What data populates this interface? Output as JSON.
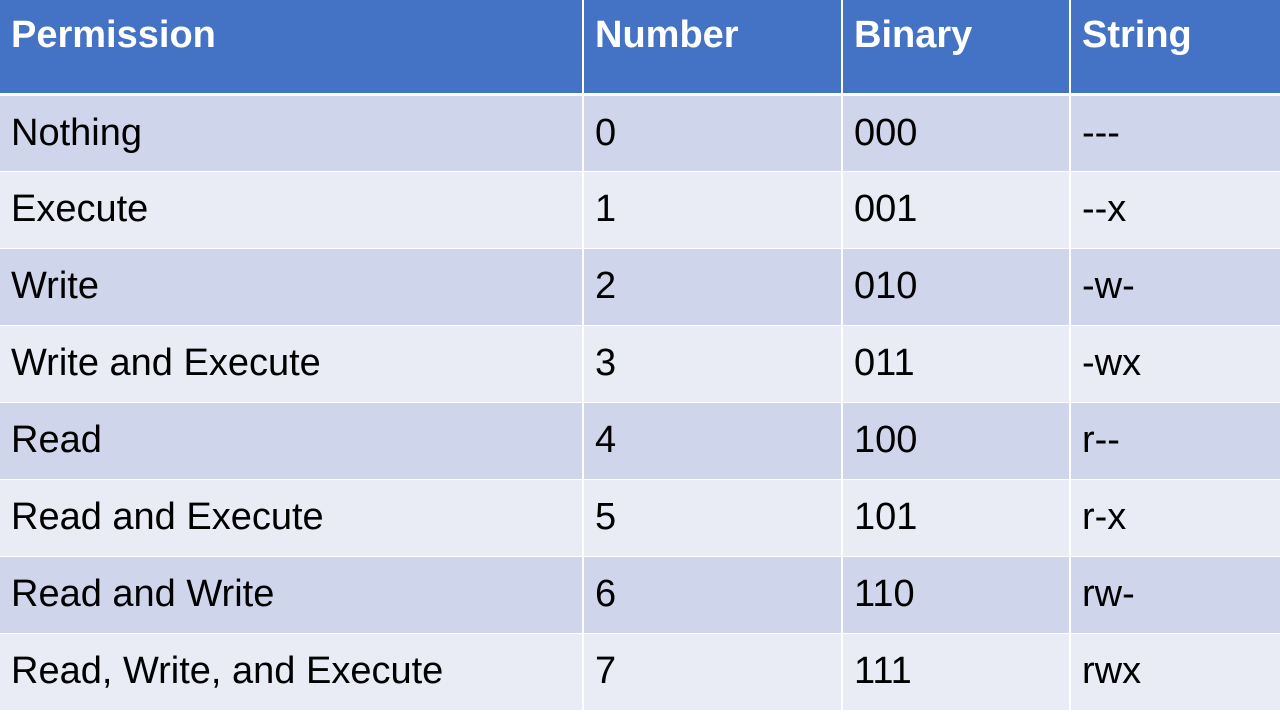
{
  "table": {
    "headers": [
      "Permission",
      "Number",
      "Binary",
      "String"
    ],
    "rows": [
      [
        "Nothing",
        "0",
        "000",
        "---"
      ],
      [
        "Execute",
        "1",
        "001",
        "--x"
      ],
      [
        "Write",
        "2",
        "010",
        "-w-"
      ],
      [
        "Write and Execute",
        "3",
        "011",
        "-wx"
      ],
      [
        "Read",
        "4",
        "100",
        "r--"
      ],
      [
        "Read and Execute",
        "5",
        "101",
        "r-x"
      ],
      [
        "Read and Write",
        "6",
        "110",
        "rw-"
      ],
      [
        "Read, Write, and Execute",
        "7",
        "111",
        "rwx"
      ]
    ]
  },
  "colors": {
    "header_bg": "#4472c4",
    "header_text": "#ffffff",
    "row_band_dark": "#cfd5ea",
    "row_band_light": "#e9ebf5"
  }
}
